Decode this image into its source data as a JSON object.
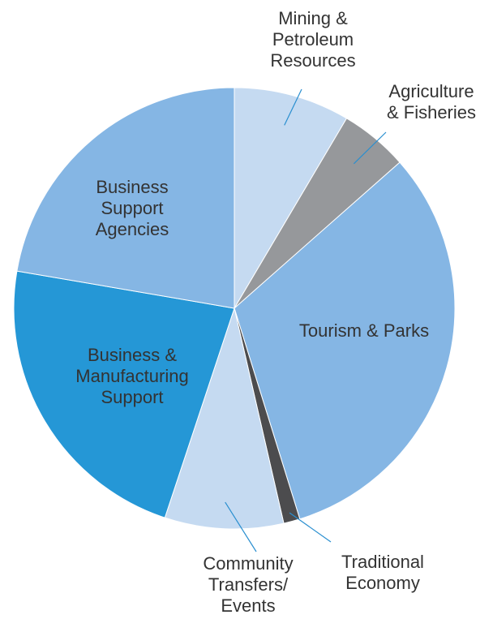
{
  "chart_data": {
    "type": "pie",
    "title": "",
    "slices": [
      {
        "name": "Mining & Petroleum Resources",
        "label_lines": [
          "Mining &",
          "Petroleum",
          "Resources"
        ],
        "value": 8.5,
        "color": "#c5daf1"
      },
      {
        "name": "Agriculture & Fisheries",
        "label_lines": [
          "Agriculture",
          "& Fisheries"
        ],
        "value": 5.0,
        "color": "#96989b"
      },
      {
        "name": "Tourism & Parks",
        "label_lines": [
          "Tourism & Parks"
        ],
        "value": 31.7,
        "color": "#85b6e4"
      },
      {
        "name": "Traditional Economy",
        "label_lines": [
          "Traditional",
          "Economy"
        ],
        "value": 1.2,
        "color": "#4c4c4e"
      },
      {
        "name": "Community Transfers/ Events",
        "label_lines": [
          "Community",
          "Transfers/",
          "Events"
        ],
        "value": 8.7,
        "color": "#c5daf1"
      },
      {
        "name": "Business & Manufacturing Support",
        "label_lines": [
          "Business &",
          "Manufacturing",
          "Support"
        ],
        "value": 22.6,
        "color": "#2597d6"
      },
      {
        "name": "Business Support Agencies",
        "label_lines": [
          "Business",
          "Support",
          "Agencies"
        ],
        "value": 22.3,
        "color": "#85b6e4"
      }
    ]
  }
}
